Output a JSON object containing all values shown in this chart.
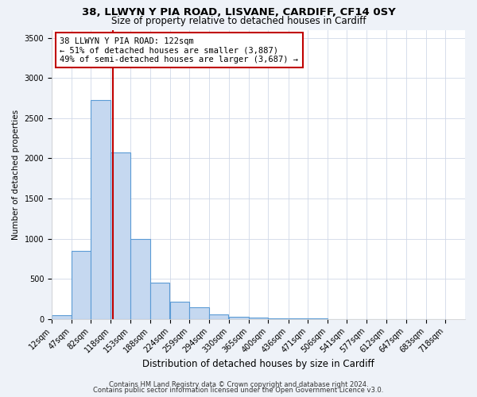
{
  "title1": "38, LLWYN Y PIA ROAD, LISVANE, CARDIFF, CF14 0SY",
  "title2": "Size of property relative to detached houses in Cardiff",
  "xlabel": "Distribution of detached houses by size in Cardiff",
  "ylabel": "Number of detached properties",
  "bins": [
    12,
    47,
    82,
    118,
    153,
    188,
    224,
    259,
    294,
    330,
    365,
    400,
    436,
    471,
    506,
    541,
    577,
    612,
    647,
    683,
    718
  ],
  "counts": [
    50,
    850,
    2725,
    2075,
    1000,
    450,
    210,
    145,
    55,
    30,
    20,
    10,
    5,
    3,
    2,
    2,
    1,
    1,
    0,
    1
  ],
  "bar_color": "#c5d8f0",
  "bar_edge_color": "#5b9bd5",
  "bar_linewidth": 0.8,
  "vline_x": 122,
  "vline_color": "#c00000",
  "vline_linewidth": 1.5,
  "annotation_line1": "38 LLWYN Y PIA ROAD: 122sqm",
  "annotation_line2": "← 51% of detached houses are smaller (3,887)",
  "annotation_line3": "49% of semi-detached houses are larger (3,687) →",
  "annotation_box_color": "white",
  "annotation_box_edge": "#c00000",
  "annotation_fontsize": 7.5,
  "ylim": [
    0,
    3600
  ],
  "background_color": "#eef2f8",
  "plot_background": "white",
  "footer1": "Contains HM Land Registry data © Crown copyright and database right 2024.",
  "footer2": "Contains public sector information licensed under the Open Government Licence v3.0.",
  "title1_fontsize": 9.5,
  "title2_fontsize": 8.5,
  "xlabel_fontsize": 8.5,
  "ylabel_fontsize": 7.5,
  "tick_fontsize": 7.0,
  "footer_fontsize": 6.0
}
